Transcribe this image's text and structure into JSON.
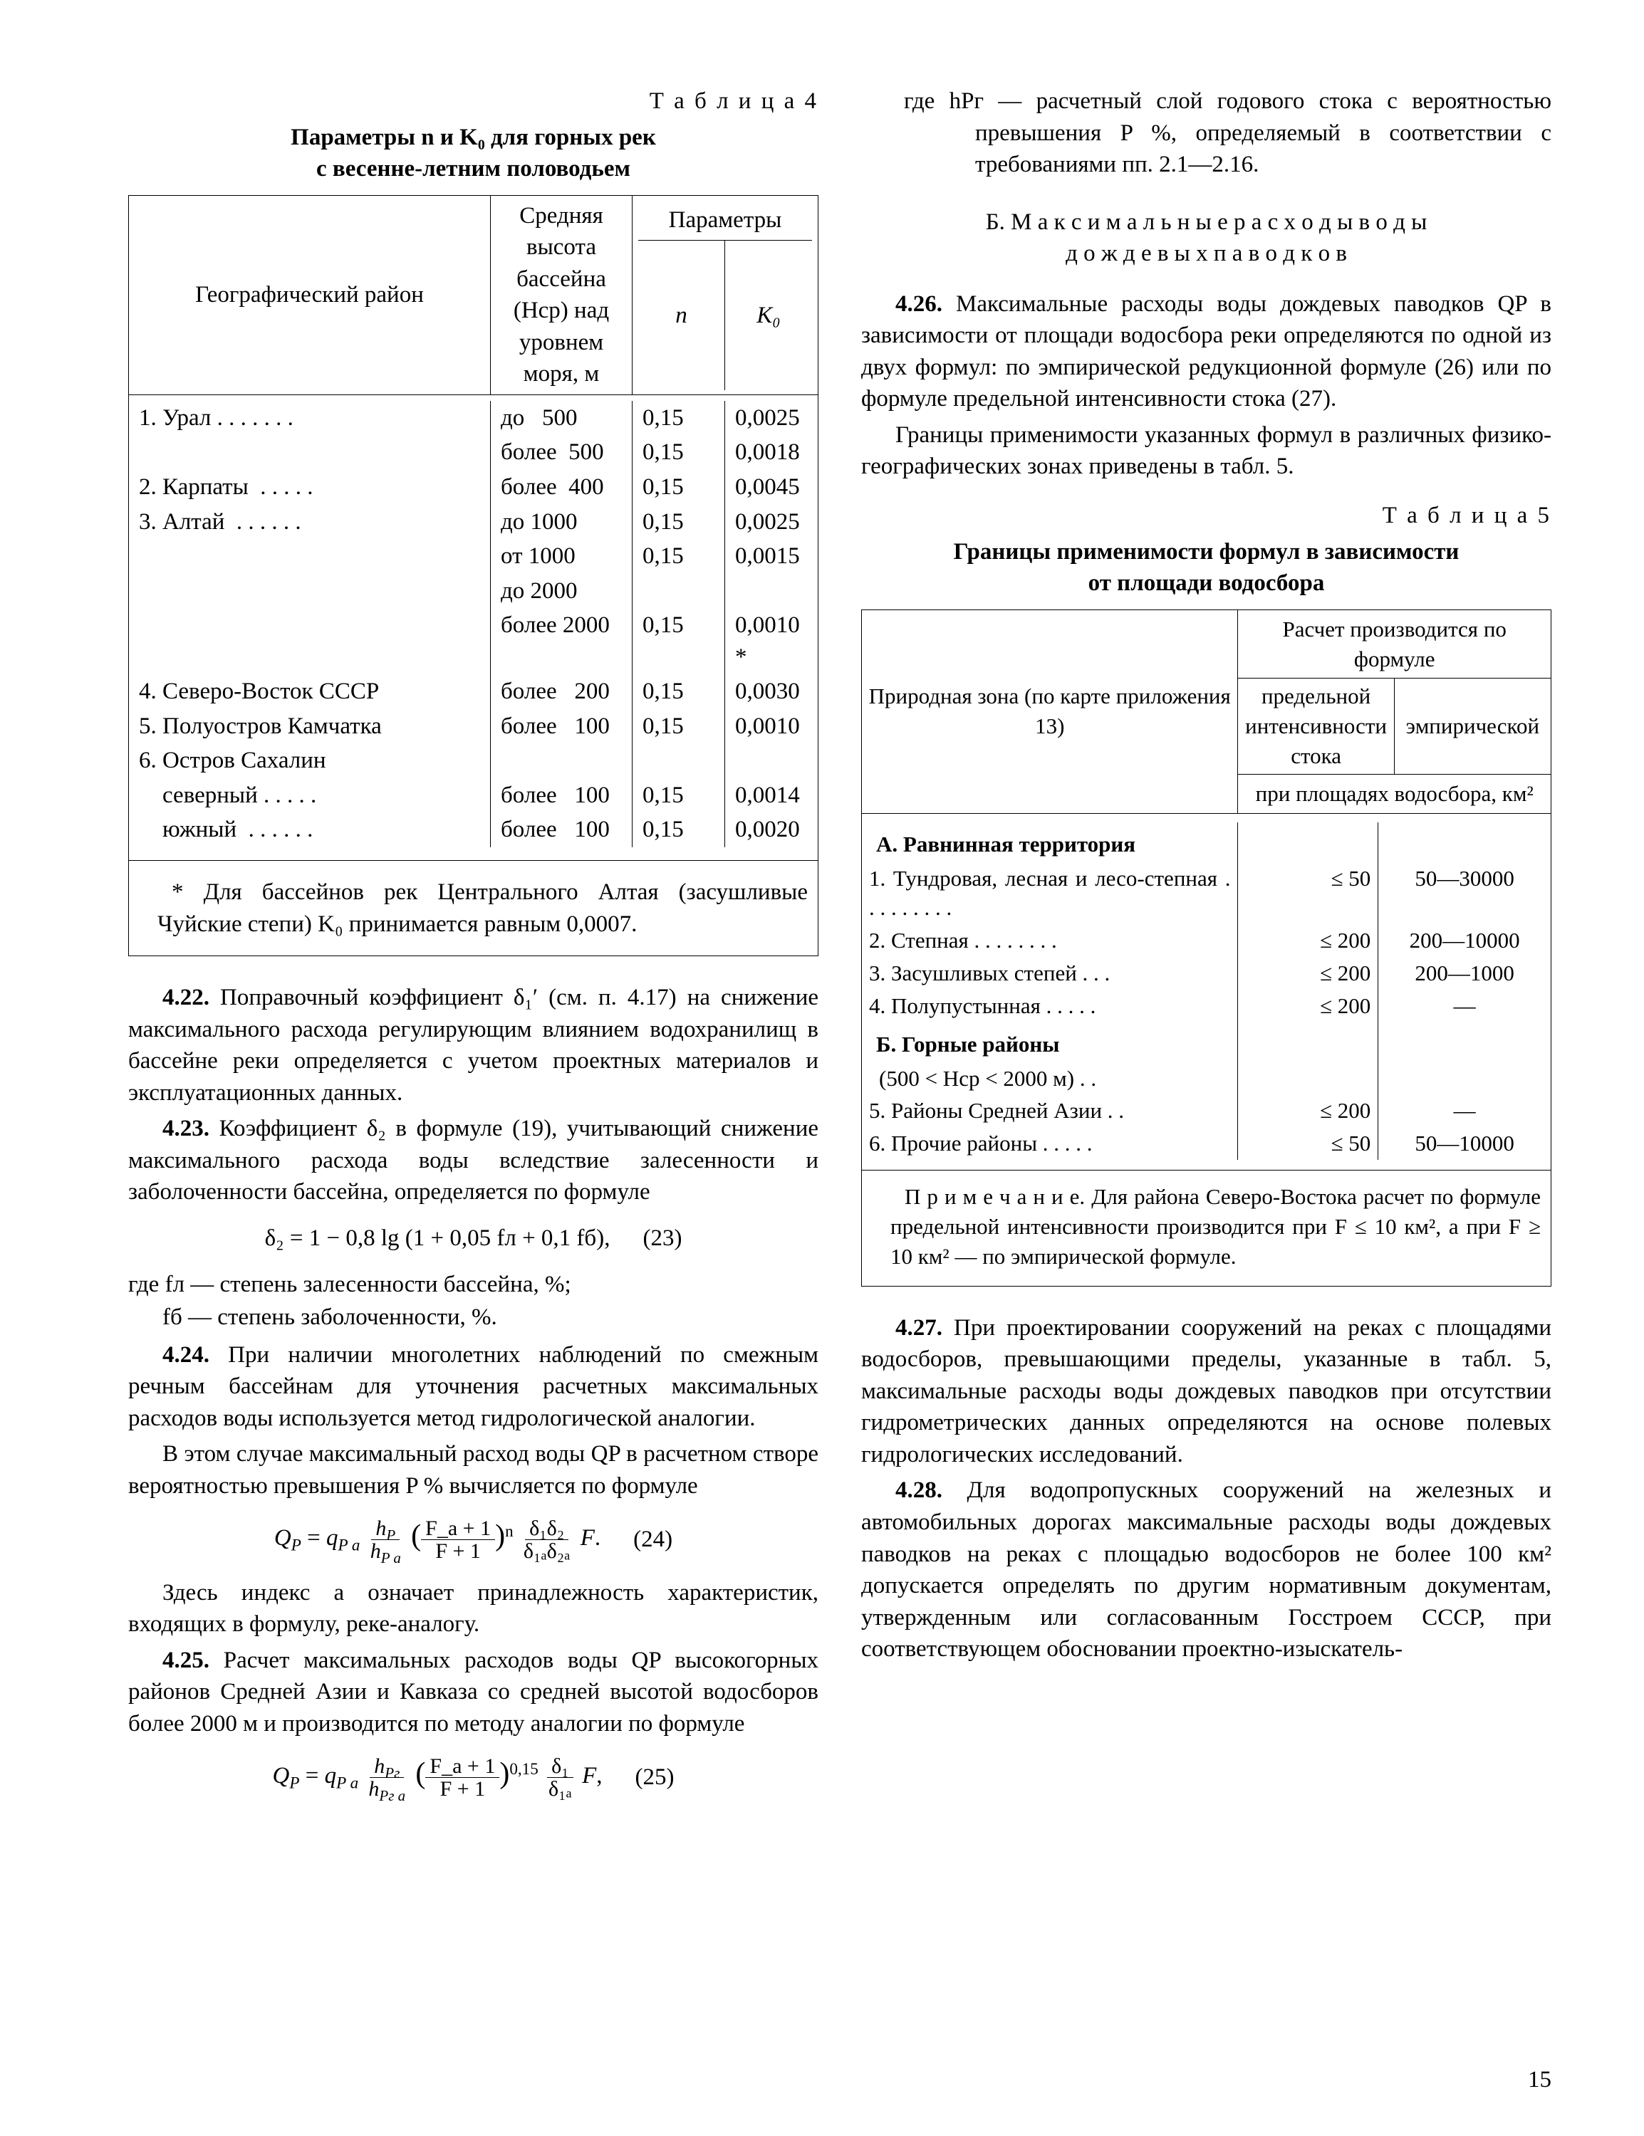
{
  "page_number": "15",
  "left": {
    "t4_label": "Т а б л и ц а  4",
    "t4_title_l1": "Параметры n и K₀ для горных рек",
    "t4_title_l2": "с весенне-летним половодьем",
    "t4_h_geo": "Географический район",
    "t4_h_mid": "Средняя высота бассейна (Hср) над уровнем моря, м",
    "t4_h_par": "Параметры",
    "t4_h_n": "n",
    "t4_h_k": "K₀",
    "t4_rows": [
      {
        "geo": "1. Урал . . . . . . .",
        "h": "до   500",
        "n": "0,15",
        "k": "0,0025"
      },
      {
        "geo": "",
        "h": "более  500",
        "n": "0,15",
        "k": "0,0018"
      },
      {
        "geo": "2. Карпаты  . . . . .",
        "h": "более  400",
        "n": "0,15",
        "k": "0,0045"
      },
      {
        "geo": "3. Алтай  . . . . . .",
        "h": "до 1000",
        "n": "0,15",
        "k": "0,0025"
      },
      {
        "geo": "",
        "h": "от 1000",
        "n": "0,15",
        "k": "0,0015"
      },
      {
        "geo": "",
        "h": "до 2000",
        "n": "",
        "k": ""
      },
      {
        "geo": "",
        "h": "более 2000",
        "n": "0,15",
        "k": "0,0010 *"
      },
      {
        "geo": "4. Северо-Восток СССР",
        "h": "более   200",
        "n": "0,15",
        "k": "0,0030"
      },
      {
        "geo": "5. Полуостров Камчатка",
        "h": "более   100",
        "n": "0,15",
        "k": "0,0010"
      },
      {
        "geo": "6. Остров Сахалин",
        "h": "",
        "n": "",
        "k": ""
      },
      {
        "geo": "    северный . . . . .",
        "h": "более   100",
        "n": "0,15",
        "k": "0,0014"
      },
      {
        "geo": "    южный  . . . . . .",
        "h": "более   100",
        "n": "0,15",
        "k": "0,0020"
      }
    ],
    "t4_note": "* Для бассейнов рек Центрального Алтая (засушливые Чуйские степи) K₀ принимается равным 0,0007.",
    "p422": "4.22. Поправочный коэффициент δ₁′ (см. п. 4.17) на снижение максимального расхода регулирующим влиянием водохранилищ в бассейне реки определяется с учетом проектных материалов и эксплуатационных данных.",
    "p423": "4.23. Коэффициент δ₂ в формуле (19), учитывающий снижение максимального расхода воды вследствие залесенности и заболоченности бассейна, определяется по формуле",
    "f23": "δ₂ = 1 − 0,8 lg (1 + 0,05 fл + 0,1 fб),",
    "f23n": "(23)",
    "def_fl": "где fл — степень залесенности бассейна, %;",
    "def_fb": "fб — степень заболоченности, %.",
    "p424a": "4.24. При наличии многолетних наблюдений по смежным речным бассейнам для уточнения расчетных максимальных расходов воды используется метод гидрологической аналогии.",
    "p424b": "В этом случае максимальный расход воды QP в расчетном створе вероятностью превышения P % вычисляется по формуле",
    "f24_left": "Q_P = q_{P a}",
    "f24_frac_num": "h_P",
    "f24_frac_den": "h_{P a}",
    "f24_paren_num": "F_a + 1",
    "f24_paren_den": "F + 1",
    "f24_exp": "n",
    "f24_right_num": "δ₁δ₂",
    "f24_right_den": "δ₁ₐδ₂ₐ",
    "f24_tail": " F.",
    "f24n": "(24)",
    "p424c": "Здесь индекс a означает принадлежность характеристик, входящих в формулу, реке-аналогу.",
    "p425": "4.25. Расчет максимальных расходов воды QP высокогорных районов Средней Азии и Кавказа со средней высотой водосборов более 2000 м и производится по методу аналогии по формуле",
    "f25_left": "Q_P = q_{P a}",
    "f25_frac_num": "h_{Pг}",
    "f25_frac_den": "h_{Pг a}",
    "f25_paren_num": "F_a + 1",
    "f25_paren_den": "F + 1",
    "f25_exp": "0,15",
    "f25_right_num": "δ₁",
    "f25_right_den": "δ₁ₐ",
    "f25_tail": " F,",
    "f25n": "(25)"
  },
  "right": {
    "hpg": "где    hPг — расчетный слой годового стока с вероятностью превышения P %, определяемый в соответствии с требованиями пп. 2.1—2.16.",
    "hdr_b1": "Б. М а к с и м а л ь н ы е  р а с х о д ы  в о д ы",
    "hdr_b2": "д о ж д е в ы х  п а в о д к о в",
    "p426a": "4.26. Максимальные расходы воды дождевых паводков QP в зависимости от площади водосбора реки определяются по одной из двух формул: по эмпирической редукционной формуле (26) или по формуле предельной интенсивности стока (27).",
    "p426b": "Границы применимости указанных формул в различных физико-географических зонах приведены в табл. 5.",
    "t5_label": "Т а б л и ц а  5",
    "t5_title_l1": "Границы применимости формул в зависимости",
    "t5_title_l2": "от площади водосбора",
    "t5_h_left": "Природная зона (по карте приложения 13)",
    "t5_h_r1": "Расчет производится по формуле",
    "t5_h_r2a": "предельной интенсив­ности стока",
    "t5_h_r2b": "эмпирической",
    "t5_h_r3": "при площадях водосбора, км²",
    "t5_secA": "А. Равнинная территория",
    "t5_rowsA": [
      {
        "z": "1. Тундровая, лесная и лесо-степная . . . . . . . . .",
        "a": "≤  50",
        "b": "50—30000"
      },
      {
        "z": "2. Степная  . . . . . . . .",
        "a": "≤ 200",
        "b": "200—10000"
      },
      {
        "z": "3. Засушливых степей  . . .",
        "a": "≤ 200",
        "b": "200—1000"
      },
      {
        "z": "4. Полупустынная  . . . . .",
        "a": "≤ 200",
        "b": "—"
      }
    ],
    "t5_secB": "Б. Горные районы",
    "t5_bnote": "(500 < Hср < 2000 м)  . .",
    "t5_rowsB": [
      {
        "z": "5. Районы Средней Азии . .",
        "a": "≤ 200",
        "b": "—"
      },
      {
        "z": "6. Прочие районы . . . . .",
        "a": "≤  50",
        "b": "50—10000"
      }
    ],
    "t5_note": "П р и м е ч а н и е.  Для района Северо-Востока расчет по формуле предельной интенсивности производится при F ≤ 10 км², а при F ≥ 10 км² — по эмпирической формуле.",
    "p427": "4.27. При проектировании сооружений на реках с площадями водосборов, превышающими пределы, указанные в табл. 5, максимальные расходы воды дождевых паводков при отсутствии гидрометрических данных определяются на основе полевых гидрологических исследований.",
    "p428": "4.28. Для водопропускных сооружений на железных и автомобильных дорогах максимальные расходы воды дождевых паводков на реках с площадью водосборов не более 100 км² допускается определять по другим нормативным документам, утвержденным или согласованным Госстроем СССР, при соответствующем обосновании проектно-изыскатель-"
  }
}
